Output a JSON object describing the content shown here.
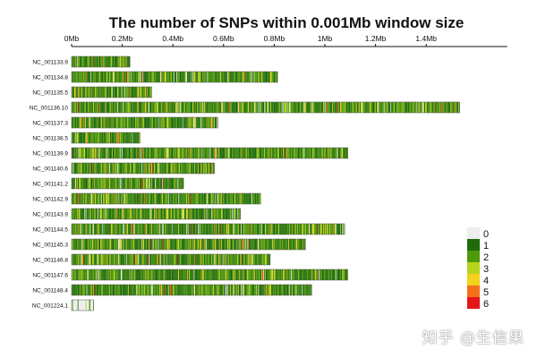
{
  "chart_data": {
    "type": "heatmap",
    "title": "The number of SNPs within 0.001Mb window size",
    "x_axis": {
      "unit": "Mb",
      "ticks": [
        {
          "value": 0,
          "label": "0Mb"
        },
        {
          "value": 0.2,
          "label": "0.2Mb"
        },
        {
          "value": 0.4,
          "label": "0.4Mb"
        },
        {
          "value": 0.6,
          "label": "0.6Mb"
        },
        {
          "value": 0.8,
          "label": "0.8Mb"
        },
        {
          "value": 1.0,
          "label": "1Mb"
        },
        {
          "value": 1.2,
          "label": "1.2Mb"
        },
        {
          "value": 1.4,
          "label": "1.4Mb"
        }
      ],
      "range": [
        0,
        1.72
      ]
    },
    "chromosomes": [
      {
        "name": "NC_001133.9",
        "length_mb": 0.23
      },
      {
        "name": "NC_001134.8",
        "length_mb": 0.813
      },
      {
        "name": "NC_001135.5",
        "length_mb": 0.317
      },
      {
        "name": "NC_001136.10",
        "length_mb": 1.532
      },
      {
        "name": "NC_001137.3",
        "length_mb": 0.577
      },
      {
        "name": "NC_001138.5",
        "length_mb": 0.27
      },
      {
        "name": "NC_001139.9",
        "length_mb": 1.091
      },
      {
        "name": "NC_001140.6",
        "length_mb": 0.563
      },
      {
        "name": "NC_001141.2",
        "length_mb": 0.44
      },
      {
        "name": "NC_001142.9",
        "length_mb": 0.746
      },
      {
        "name": "NC_001143.9",
        "length_mb": 0.667
      },
      {
        "name": "NC_001144.5",
        "length_mb": 1.078
      },
      {
        "name": "NC_001145.3",
        "length_mb": 0.924
      },
      {
        "name": "NC_001146.8",
        "length_mb": 0.784
      },
      {
        "name": "NC_001147.6",
        "length_mb": 1.091
      },
      {
        "name": "NC_001148.4",
        "length_mb": 0.948
      },
      {
        "name": "NC_001224.1",
        "length_mb": 0.086
      }
    ],
    "legend": {
      "position": "right",
      "items": [
        {
          "label": "0",
          "color": "#eeeeee"
        },
        {
          "label": "1",
          "color": "#1e6b0c"
        },
        {
          "label": "2",
          "color": "#4f9a0c"
        },
        {
          "label": "3",
          "color": "#b8d31c"
        },
        {
          "label": "4",
          "color": "#f2d21a"
        },
        {
          "label": "5",
          "color": "#f2701a"
        },
        {
          "label": "6",
          "color": "#e3151a"
        }
      ]
    }
  },
  "watermark": "知乎 @生信果"
}
